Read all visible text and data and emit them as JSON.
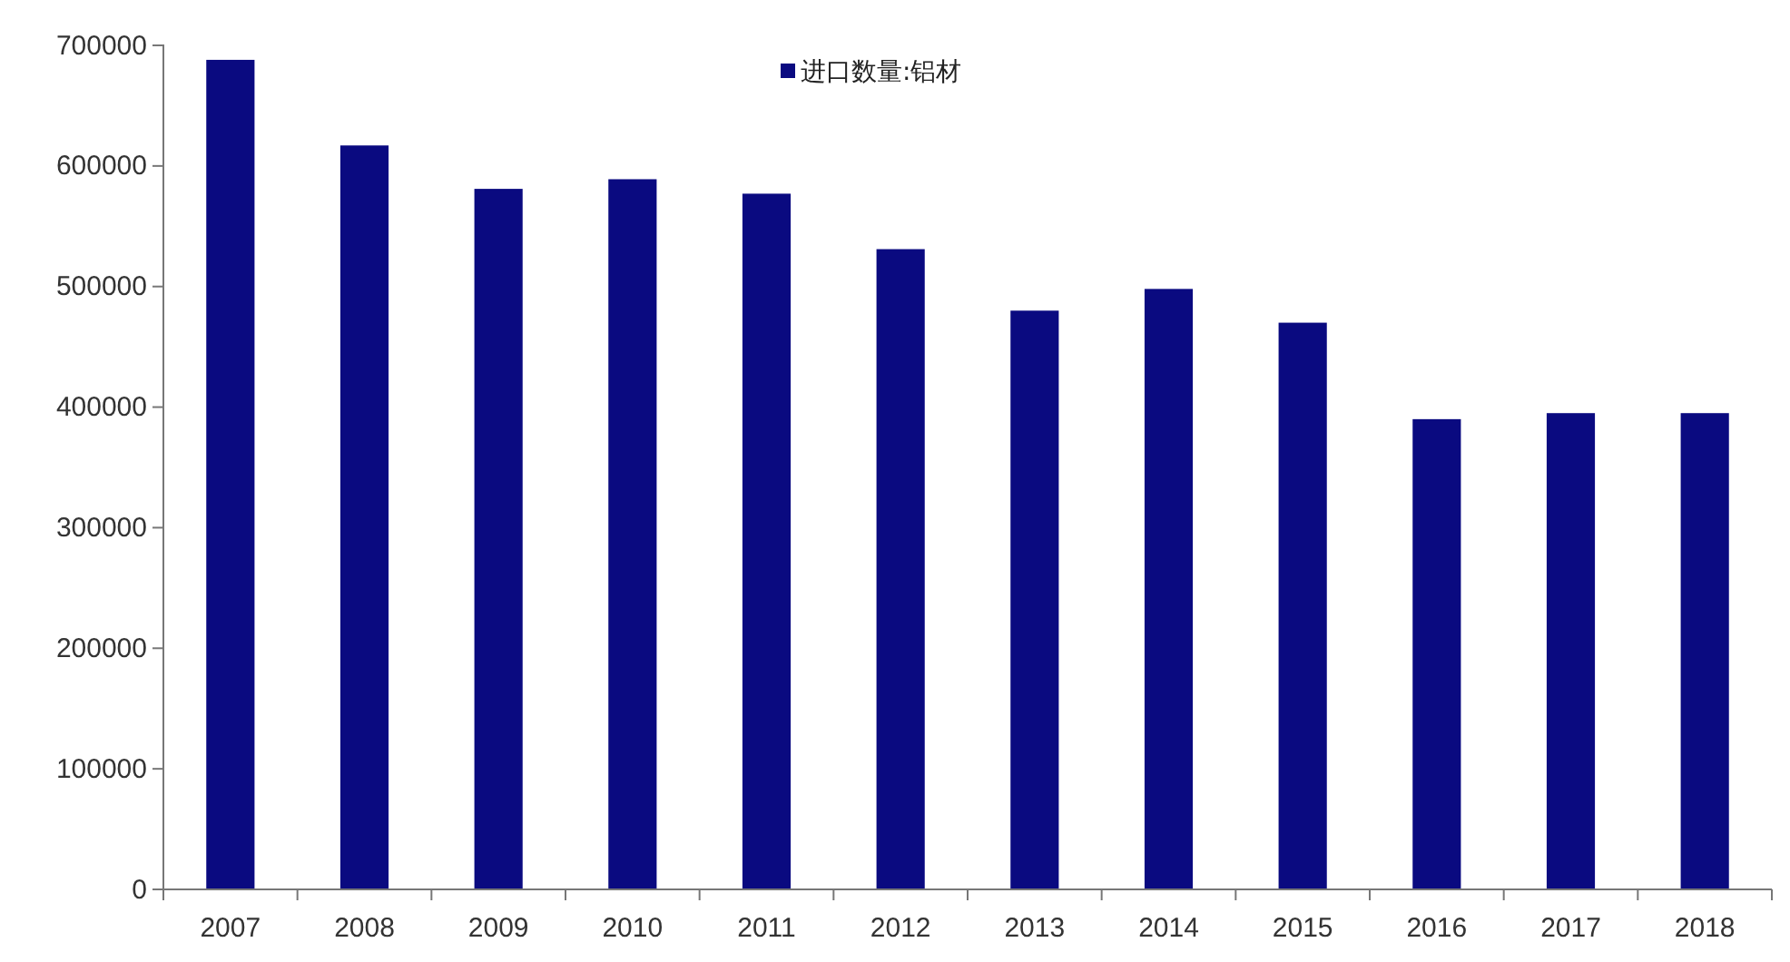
{
  "chart_data": {
    "type": "bar",
    "categories": [
      "2007",
      "2008",
      "2009",
      "2010",
      "2011",
      "2012",
      "2013",
      "2014",
      "2015",
      "2016",
      "2017",
      "2018"
    ],
    "series": [
      {
        "name": "进口数量:铝材",
        "color": "#0a0a80",
        "values": [
          688000,
          617000,
          581000,
          589000,
          577000,
          531000,
          480000,
          498000,
          470000,
          390000,
          395000,
          395000
        ]
      }
    ],
    "ylim": [
      0,
      700000
    ],
    "yticks": [
      0,
      100000,
      200000,
      300000,
      400000,
      500000,
      600000,
      700000
    ],
    "grid": false,
    "legend": "top"
  }
}
